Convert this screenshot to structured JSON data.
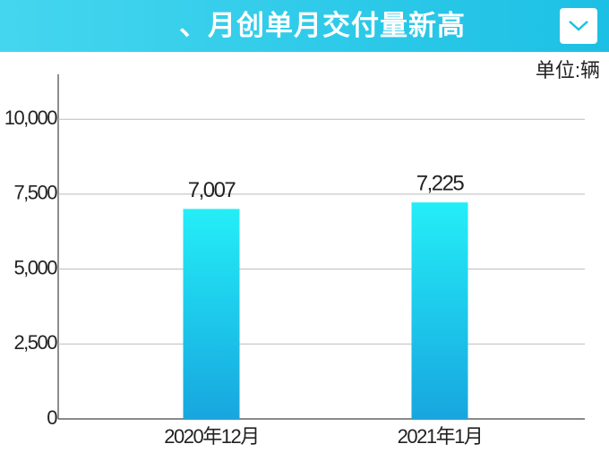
{
  "header": {
    "title": "、月创单月交付量新高"
  },
  "chart_data": {
    "type": "bar",
    "unit": "单位:辆",
    "categories": [
      "2020年12月",
      "2021年1月"
    ],
    "values": [
      7007,
      7225
    ],
    "value_labels": [
      "7,007",
      "7,225"
    ],
    "color": [
      "#24eef7",
      "#17a6df"
    ],
    "ylim": [
      0,
      11500
    ],
    "yticks": [
      0,
      {
        "value": 2500,
        "label": "2,500"
      },
      {
        "value": 5000,
        "label": "5,000"
      },
      {
        "value": 7500,
        "label": "7,500"
      },
      {
        "value": 10000,
        "label": "10,000"
      }
    ],
    "grid": true
  }
}
